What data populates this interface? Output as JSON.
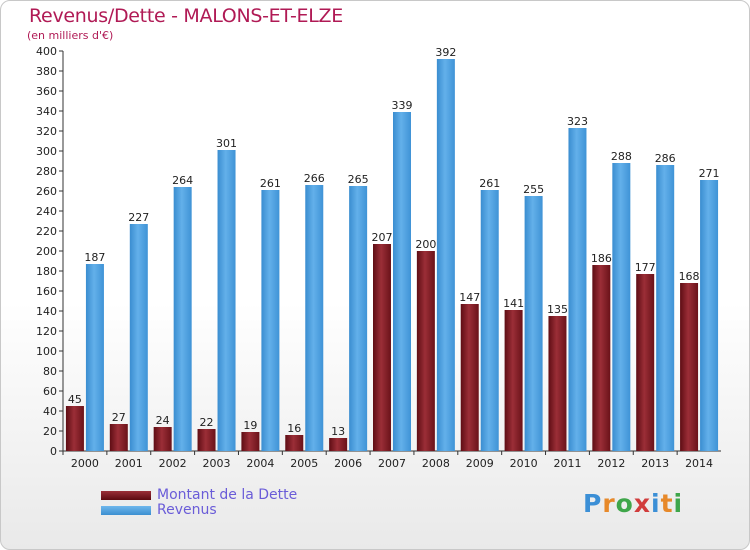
{
  "chart_data": {
    "type": "bar",
    "title": "Revenus/Dette - MALONS-ET-ELZE",
    "subtitle": "(en milliers d'€)",
    "categories": [
      "2000",
      "2001",
      "2002",
      "2003",
      "2004",
      "2005",
      "2006",
      "2007",
      "2008",
      "2009",
      "2010",
      "2011",
      "2012",
      "2013",
      "2014"
    ],
    "series": [
      {
        "name": "Montant de la Dette",
        "color": "#7a1a22",
        "values": [
          45,
          27,
          24,
          22,
          19,
          16,
          13,
          207,
          200,
          147,
          141,
          135,
          186,
          177,
          168
        ]
      },
      {
        "name": "Revenus",
        "color": "#4ea3e4",
        "values": [
          187,
          227,
          264,
          301,
          261,
          266,
          265,
          339,
          392,
          261,
          255,
          323,
          288,
          286,
          271
        ]
      }
    ],
    "ylim": [
      0,
      400
    ],
    "ytick_step": 20,
    "grid": false,
    "legend": "bottom-left"
  },
  "logo": {
    "text": "Proxiti",
    "colors": [
      "#3b8fd6",
      "#e7892a",
      "#3fa64a",
      "#d13c3c",
      "#3b8fd6",
      "#e7892a",
      "#3fa64a"
    ]
  }
}
